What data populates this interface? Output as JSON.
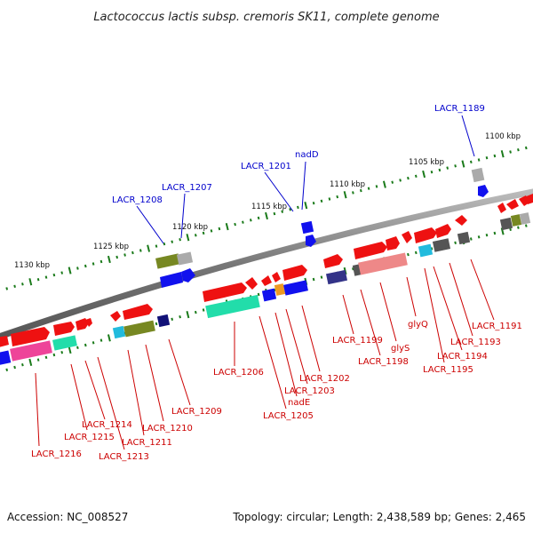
{
  "map": {
    "title": "Lactococcus lactis subsp. cremoris SK11, complete genome",
    "accession": "Accession: NC_008527",
    "summary": "Topology: circular; Length: 2,438,589 bp; Genes: 2,465",
    "scale_labels": [
      "1100 kbp",
      "1105 kbp",
      "1110 kbp",
      "1115 kbp",
      "1120 kbp",
      "1125 kbp",
      "1130 kbp"
    ],
    "colors": {
      "backbone": "#8c8c8c",
      "forward_gene": "#ee1111",
      "reverse_gene": "#1111ee",
      "tick": "#1a7a1a",
      "label_red": "#cc0000",
      "label_blue": "#0000cc",
      "olive": "#778822",
      "grey": "#aaaaaa",
      "pink": "#ee4499",
      "mint": "#22ddaa",
      "navy": "#333388",
      "cyan": "#22bbdd",
      "salmon": "#ee8888",
      "orange": "#ee9922"
    },
    "labels_top": [
      "LACR_1189",
      "nadD",
      "LACR_1201",
      "LACR_1207",
      "LACR_1208"
    ],
    "labels_bottom": [
      "LACR_1191",
      "LACR_1193",
      "LACR_1194",
      "LACR_1195",
      "glyQ",
      "glyS",
      "LACR_1198",
      "LACR_1199",
      "LACR_1202",
      "LACR_1203",
      "nadE",
      "LACR_1205",
      "LACR_1206",
      "LACR_1209",
      "LACR_1210",
      "LACR_1211",
      "LACR_1213",
      "LACR_1214",
      "LACR_1215",
      "LACR_1216"
    ]
  }
}
